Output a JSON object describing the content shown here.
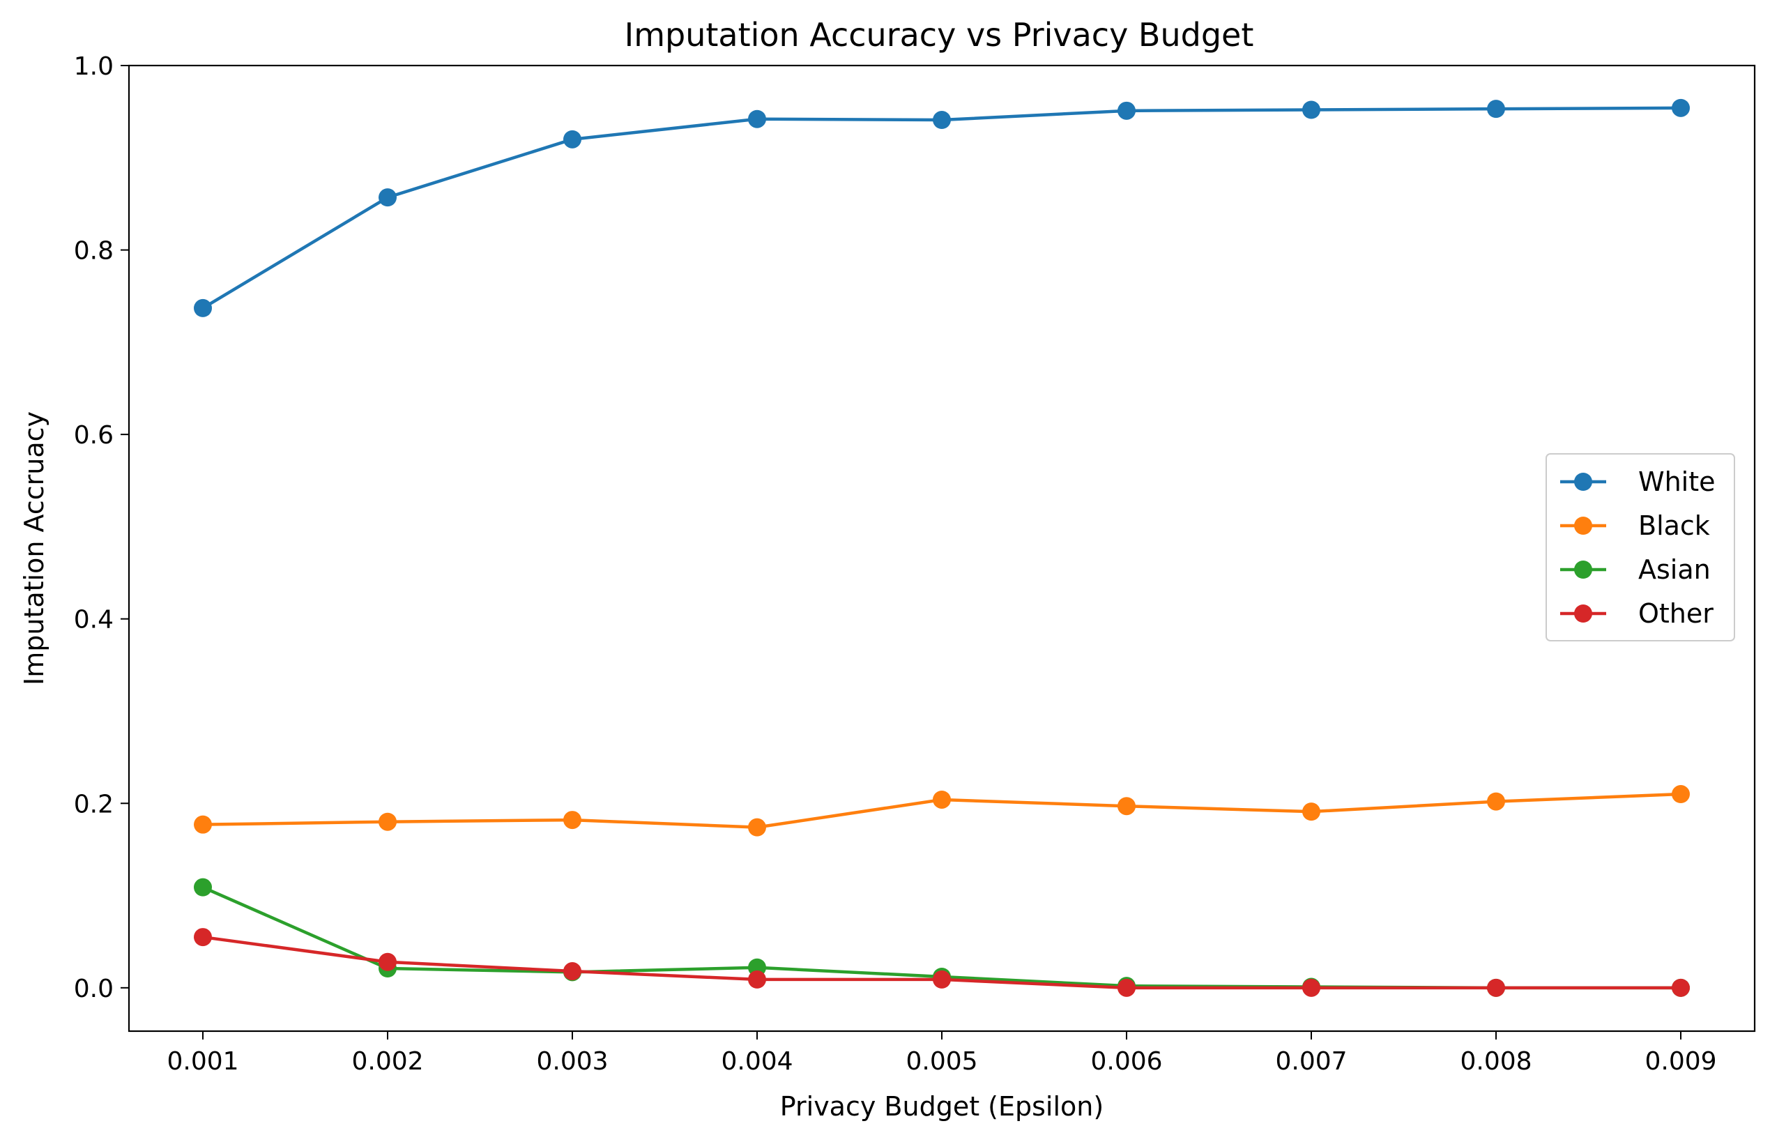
{
  "chart_data": {
    "type": "line",
    "title": "Imputation Accuracy vs Privacy Budget",
    "xlabel": "Privacy Budget (Epsilon)",
    "ylabel": "Imputation Accruacy",
    "x": [
      0.001,
      0.002,
      0.003,
      0.004,
      0.005,
      0.006,
      0.007,
      0.008,
      0.009
    ],
    "x_tick_labels": [
      "0.001",
      "0.002",
      "0.003",
      "0.004",
      "0.005",
      "0.006",
      "0.007",
      "0.008",
      "0.009"
    ],
    "y_ticks": [
      0.0,
      0.2,
      0.4,
      0.6,
      0.8,
      1.0
    ],
    "y_tick_labels": [
      "0.0",
      "0.2",
      "0.4",
      "0.6",
      "0.8",
      "1.0"
    ],
    "xlim": [
      0.0006,
      0.0094
    ],
    "ylim": [
      -0.047,
      1.0
    ],
    "grid": false,
    "legend_position": "center-right",
    "series": [
      {
        "name": "White",
        "color": "#1f77b4",
        "values": [
          0.737,
          0.857,
          0.92,
          0.942,
          0.941,
          0.951,
          0.952,
          0.953,
          0.954
        ]
      },
      {
        "name": "Black",
        "color": "#ff7f0e",
        "values": [
          0.177,
          0.18,
          0.182,
          0.174,
          0.204,
          0.197,
          0.191,
          0.202,
          0.21
        ]
      },
      {
        "name": "Asian",
        "color": "#2ca02c",
        "values": [
          0.109,
          0.021,
          0.017,
          0.022,
          0.012,
          0.002,
          0.001,
          0.0,
          0.0
        ]
      },
      {
        "name": "Other",
        "color": "#d62728",
        "values": [
          0.055,
          0.028,
          0.018,
          0.009,
          0.009,
          0.0,
          0.0,
          0.0,
          0.0
        ]
      }
    ]
  }
}
